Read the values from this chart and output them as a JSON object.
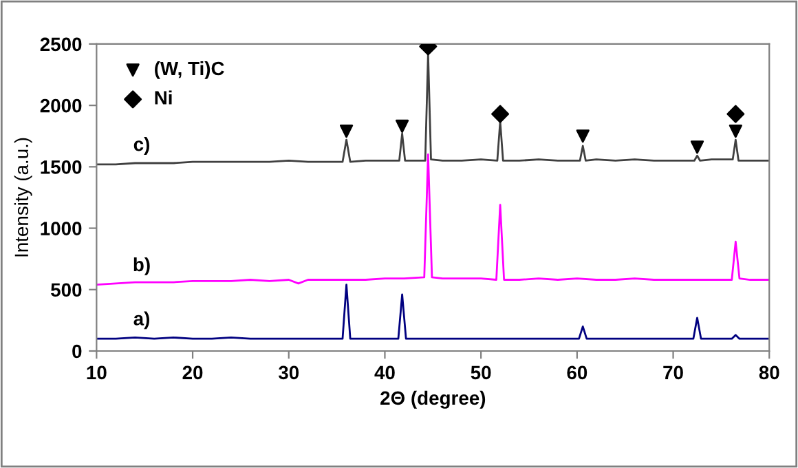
{
  "chart_data": {
    "type": "line",
    "xlabel": "2Θ (degree)",
    "ylabel": "Intensity (a.u.)",
    "xlim": [
      10,
      80
    ],
    "xticks": [
      10,
      20,
      30,
      40,
      50,
      60,
      70,
      80
    ],
    "ylim": [
      0,
      2500
    ],
    "yticks": [
      0,
      500,
      1000,
      1500,
      2000,
      2500
    ],
    "grid": false,
    "legend": "top left",
    "marker": "none",
    "line_style": "solid",
    "series": [
      {
        "name": "a)",
        "color": "#000080",
        "x": [
          10,
          12,
          14,
          16,
          18,
          20,
          22,
          24,
          26,
          28,
          30,
          32,
          34,
          35.6,
          36.0,
          36.4,
          38,
          40,
          41.4,
          41.8,
          42.2,
          44,
          46,
          48,
          50,
          52,
          54,
          56,
          58,
          60.2,
          60.6,
          61.0,
          62,
          64,
          66,
          68,
          70,
          72.1,
          72.5,
          72.9,
          74,
          76.1,
          76.5,
          76.9,
          78,
          80
        ],
        "values": [
          100,
          100,
          110,
          100,
          110,
          100,
          100,
          110,
          100,
          100,
          100,
          100,
          100,
          100,
          540,
          100,
          100,
          100,
          100,
          460,
          100,
          100,
          100,
          100,
          100,
          100,
          100,
          100,
          100,
          100,
          200,
          100,
          100,
          100,
          100,
          100,
          100,
          100,
          270,
          100,
          100,
          100,
          130,
          100,
          100,
          100
        ]
      },
      {
        "name": "b)",
        "color": "#ff00ff",
        "x": [
          10,
          12,
          14,
          16,
          18,
          20,
          22,
          24,
          26,
          28,
          30,
          31,
          32,
          34,
          36,
          38,
          40,
          42,
          44.1,
          44.5,
          44.9,
          46,
          48,
          50,
          51.6,
          52.0,
          52.4,
          54,
          56,
          58,
          60,
          62,
          64,
          66,
          68,
          70,
          72,
          74,
          76.1,
          76.5,
          76.9,
          78,
          80
        ],
        "values": [
          540,
          550,
          560,
          560,
          560,
          570,
          570,
          570,
          580,
          570,
          580,
          550,
          580,
          580,
          580,
          580,
          590,
          590,
          600,
          1600,
          600,
          590,
          590,
          590,
          580,
          1190,
          580,
          580,
          590,
          580,
          590,
          580,
          580,
          590,
          580,
          580,
          580,
          580,
          580,
          890,
          590,
          580,
          580
        ]
      },
      {
        "name": "c)",
        "color": "#404040",
        "x": [
          10,
          12,
          14,
          16,
          18,
          20,
          22,
          24,
          26,
          28,
          30,
          32,
          34,
          35.6,
          36.0,
          36.4,
          38,
          40,
          41.5,
          41.8,
          42.1,
          43.5,
          44.2,
          44.5,
          44.8,
          46,
          48,
          50,
          51.7,
          52.0,
          52.3,
          54,
          56,
          58,
          60.3,
          60.6,
          60.9,
          62,
          64,
          66,
          68,
          70,
          72.2,
          72.5,
          72.8,
          74,
          76.2,
          76.5,
          76.8,
          78,
          80
        ],
        "values": [
          1520,
          1520,
          1530,
          1530,
          1530,
          1540,
          1540,
          1540,
          1540,
          1540,
          1550,
          1540,
          1540,
          1540,
          1720,
          1540,
          1550,
          1550,
          1550,
          1770,
          1550,
          1550,
          1550,
          2420,
          1560,
          1550,
          1550,
          1560,
          1550,
          1870,
          1550,
          1550,
          1560,
          1550,
          1550,
          1670,
          1550,
          1560,
          1550,
          1560,
          1550,
          1550,
          1550,
          1590,
          1550,
          1560,
          1560,
          1720,
          1550,
          1550,
          1550
        ]
      },
      {
        "type": "scatter",
        "name": "(W, Ti)C",
        "color": "#000000",
        "marker": "triangle",
        "x": [
          36.0,
          41.8,
          60.6,
          72.5,
          76.5
        ],
        "values": [
          1790,
          1830,
          1750,
          1660,
          1790
        ]
      },
      {
        "type": "scatter",
        "name": "Ni",
        "color": "#000000",
        "marker": "diamond",
        "x": [
          44.5,
          52.0,
          76.5
        ],
        "values": [
          2480,
          1930,
          1930
        ]
      }
    ]
  }
}
